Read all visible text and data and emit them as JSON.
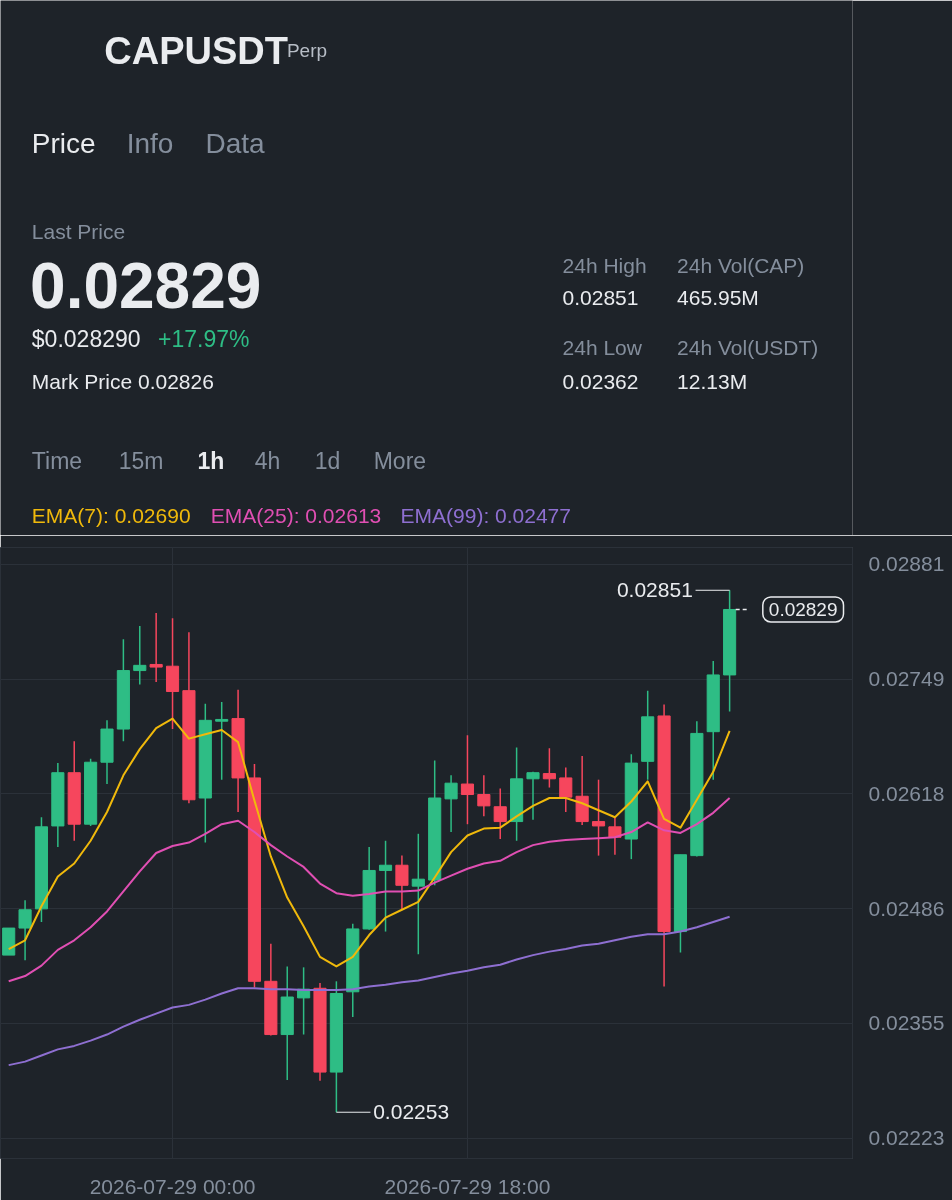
{
  "chart_data": {
    "type": "candlestick",
    "title": "CAPUSDT",
    "subtitle": "Perp",
    "annotations": [
      "Price",
      "Info",
      "Data",
      "Last Price",
      "0.02829",
      "$0.028290",
      "+17.97%",
      "Mark Price 0.02826",
      "24h High",
      "0.02851",
      "24h Vol(CAP)",
      "465.95M",
      "24h Low",
      "0.02362",
      "24h Vol(USDT)",
      "12.13M",
      "Time",
      "15m",
      "1h",
      "4h",
      "1d",
      "More",
      {
        "text": "0.02851",
        "x": "2026-07-30T10:00",
        "y": 0.02851
      },
      {
        "text": "0.02253",
        "x": "2026-07-29T10:00",
        "y": 0.02253
      }
    ],
    "x": [
      "2026-07-28T14:00",
      "2026-07-28T15:00",
      "2026-07-28T16:00",
      "2026-07-28T17:00",
      "2026-07-28T18:00",
      "2026-07-28T19:00",
      "2026-07-28T20:00",
      "2026-07-28T21:00",
      "2026-07-28T22:00",
      "2026-07-28T23:00",
      "2026-07-29T00:00",
      "2026-07-29T01:00",
      "2026-07-29T02:00",
      "2026-07-29T03:00",
      "2026-07-29T04:00",
      "2026-07-29T05:00",
      "2026-07-29T06:00",
      "2026-07-29T07:00",
      "2026-07-29T08:00",
      "2026-07-29T09:00",
      "2026-07-29T10:00",
      "2026-07-29T11:00",
      "2026-07-29T12:00",
      "2026-07-29T13:00",
      "2026-07-29T14:00",
      "2026-07-29T15:00",
      "2026-07-29T16:00",
      "2026-07-29T17:00",
      "2026-07-29T18:00",
      "2026-07-29T19:00",
      "2026-07-29T20:00",
      "2026-07-29T21:00",
      "2026-07-29T22:00",
      "2026-07-29T23:00",
      "2026-07-30T00:00",
      "2026-07-30T01:00",
      "2026-07-30T02:00",
      "2026-07-30T03:00",
      "2026-07-30T04:00",
      "2026-07-30T05:00",
      "2026-07-30T06:00",
      "2026-07-30T07:00",
      "2026-07-30T08:00",
      "2026-07-30T09:00",
      "2026-07-30T10:00"
    ],
    "ohlc": [
      [
        0.02433,
        0.02464,
        0.02433,
        0.02464
      ],
      [
        0.02464,
        0.02496,
        0.02427,
        0.02485
      ],
      [
        0.02486,
        0.02591,
        0.02471,
        0.0258
      ],
      [
        0.02581,
        0.02653,
        0.02557,
        0.02642
      ],
      [
        0.02642,
        0.02678,
        0.02564,
        0.02583
      ],
      [
        0.02583,
        0.02658,
        0.02581,
        0.02654
      ],
      [
        0.02654,
        0.02702,
        0.02629,
        0.02692
      ],
      [
        0.02692,
        0.02795,
        0.02678,
        0.02759
      ],
      [
        0.02759,
        0.0281,
        0.02743,
        0.02765
      ],
      [
        0.02766,
        0.02825,
        0.02746,
        0.02763
      ],
      [
        0.02764,
        0.02819,
        0.02692,
        0.02735
      ],
      [
        0.02736,
        0.02803,
        0.02607,
        0.02611
      ],
      [
        0.02613,
        0.02721,
        0.02562,
        0.02702
      ],
      [
        0.02701,
        0.02723,
        0.02634,
        0.02703
      ],
      [
        0.02704,
        0.02737,
        0.02597,
        0.02636
      ],
      [
        0.02636,
        0.02652,
        0.02396,
        0.02403
      ],
      [
        0.02403,
        0.02446,
        0.02341,
        0.02342
      ],
      [
        0.02342,
        0.0242,
        0.0229,
        0.02385
      ],
      [
        0.02384,
        0.02419,
        0.02342,
        0.02394
      ],
      [
        0.02395,
        0.02401,
        0.02289,
        0.02299
      ],
      [
        0.02299,
        0.02403,
        0.02253,
        0.02389
      ],
      [
        0.02391,
        0.02469,
        0.02362,
        0.02463
      ],
      [
        0.02463,
        0.02557,
        0.02462,
        0.0253
      ],
      [
        0.0253,
        0.02564,
        0.0246,
        0.02536
      ],
      [
        0.02536,
        0.02547,
        0.02485,
        0.02513
      ],
      [
        0.02512,
        0.02572,
        0.02434,
        0.0252
      ],
      [
        0.02519,
        0.02656,
        0.02513,
        0.02613
      ],
      [
        0.02612,
        0.02639,
        0.02574,
        0.0263
      ],
      [
        0.02629,
        0.02685,
        0.02583,
        0.02617
      ],
      [
        0.02617,
        0.02639,
        0.02592,
        0.02604
      ],
      [
        0.02603,
        0.02624,
        0.02566,
        0.02586
      ],
      [
        0.02586,
        0.02671,
        0.02564,
        0.02635
      ],
      [
        0.02635,
        0.02643,
        0.02588,
        0.02642
      ],
      [
        0.02641,
        0.0267,
        0.02625,
        0.02635
      ],
      [
        0.02636,
        0.02648,
        0.02597,
        0.02614
      ],
      [
        0.02615,
        0.02661,
        0.02582,
        0.02586
      ],
      [
        0.02586,
        0.02634,
        0.02547,
        0.02581
      ],
      [
        0.0258,
        0.0259,
        0.02548,
        0.02568
      ],
      [
        0.02566,
        0.02663,
        0.02543,
        0.02653
      ],
      [
        0.02655,
        0.02736,
        0.02634,
        0.02706
      ],
      [
        0.02707,
        0.0272,
        0.02397,
        0.0246
      ],
      [
        0.0246,
        0.02548,
        0.02436,
        0.02548
      ],
      [
        0.02547,
        0.02701,
        0.02546,
        0.02687
      ],
      [
        0.02689,
        0.0277,
        0.02634,
        0.02754
      ],
      [
        0.02754,
        0.02851,
        0.02712,
        0.02829
      ]
    ],
    "colors": [
      "#2ebd85",
      "#2ebd85",
      "#2ebd85",
      "#2ebd85",
      "#f6465d",
      "#2ebd85",
      "#2ebd85",
      "#2ebd85",
      "#2ebd85",
      "#f6465d",
      "#f6465d",
      "#f6465d",
      "#2ebd85",
      "#2ebd85",
      "#f6465d",
      "#f6465d",
      "#f6465d",
      "#2ebd85",
      "#2ebd85",
      "#f6465d",
      "#2ebd85",
      "#2ebd85",
      "#2ebd85",
      "#2ebd85",
      "#f6465d",
      "#2ebd85",
      "#2ebd85",
      "#2ebd85",
      "#f6465d",
      "#f6465d",
      "#f6465d",
      "#2ebd85",
      "#2ebd85",
      "#f6465d",
      "#f6465d",
      "#f6465d",
      "#f6465d",
      "#f6465d",
      "#2ebd85",
      "#2ebd85",
      "#f6465d",
      "#2ebd85",
      "#2ebd85",
      "#2ebd85",
      "#2ebd85"
    ],
    "series": [
      {
        "type": "line",
        "name": "EMA(7): 0.02690",
        "color": "#f0b90b",
        "values": [
          0.0244,
          0.0245,
          0.02489,
          0.02523,
          0.02538,
          0.02564,
          0.02597,
          0.02639,
          0.02669,
          0.02693,
          0.02704,
          0.02681,
          0.02686,
          0.02691,
          0.02677,
          0.0261,
          0.02546,
          0.02499,
          0.02466,
          0.02431,
          0.0242,
          0.02431,
          0.02456,
          0.02476,
          0.02485,
          0.02494,
          0.02522,
          0.02551,
          0.0257,
          0.02578,
          0.02579,
          0.02592,
          0.02604,
          0.02613,
          0.02613,
          0.02607,
          0.02599,
          0.02591,
          0.02609,
          0.02632,
          0.02589,
          0.02579,
          0.02611,
          0.02643,
          0.0269
        ]
      },
      {
        "type": "line",
        "name": "EMA(25): 0.02613",
        "color": "#e04fb3",
        "values": [
          0.02403,
          0.02409,
          0.02421,
          0.02439,
          0.0245,
          0.02465,
          0.02483,
          0.02506,
          0.02529,
          0.0255,
          0.02558,
          0.02562,
          0.02572,
          0.02583,
          0.02587,
          0.02574,
          0.02559,
          0.02546,
          0.02534,
          0.02515,
          0.02504,
          0.02501,
          0.02503,
          0.02506,
          0.02506,
          0.02507,
          0.02516,
          0.02524,
          0.02532,
          0.02538,
          0.02541,
          0.02551,
          0.02559,
          0.02563,
          0.02565,
          0.02566,
          0.02567,
          0.02568,
          0.02574,
          0.02585,
          0.02576,
          0.02573,
          0.02583,
          0.02596,
          0.02613
        ]
      },
      {
        "type": "line",
        "name": "EMA(99): 0.02477",
        "color": "#8e6fd1",
        "values": [
          0.02307,
          0.02311,
          0.02318,
          0.02325,
          0.02329,
          0.02335,
          0.02342,
          0.02351,
          0.02359,
          0.02366,
          0.02373,
          0.02376,
          0.02382,
          0.02389,
          0.02395,
          0.02395,
          0.02394,
          0.02394,
          0.02393,
          0.02393,
          0.02393,
          0.02394,
          0.02397,
          0.02399,
          0.02402,
          0.02404,
          0.02408,
          0.02412,
          0.02415,
          0.02419,
          0.02422,
          0.02428,
          0.02433,
          0.02437,
          0.0244,
          0.02444,
          0.02446,
          0.0245,
          0.02454,
          0.02457,
          0.02457,
          0.0246,
          0.02465,
          0.02471,
          0.02477
        ]
      }
    ],
    "xlim": [
      "2026-07-28T13:30",
      "2026-07-30T17:30"
    ],
    "ylim": [
      0.022,
      0.029
    ],
    "xticks": [
      {
        "value": "2026-07-29T00:00",
        "label": "2026-07-29 00:00"
      },
      {
        "value": "2026-07-29T18:00",
        "label": "2026-07-29 18:00"
      }
    ],
    "yticks": [
      0.02223,
      0.02355,
      0.02486,
      0.02618,
      0.02749,
      0.02881
    ],
    "grid": true,
    "legend": "top left",
    "ref_lines": [
      {
        "axis": "y",
        "value": 0.02829,
        "label": "0.02829",
        "line_style": "dashed",
        "color": "#eaecef"
      }
    ]
  }
}
